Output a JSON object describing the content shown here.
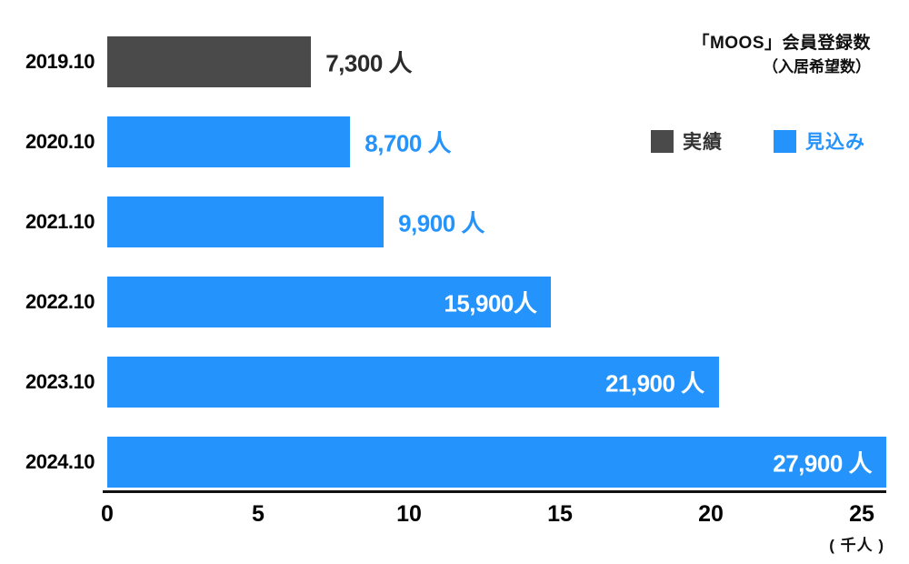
{
  "title": {
    "line1": "「MOOS」会員登録数",
    "line2": "（入居希望数）"
  },
  "legend": {
    "items": [
      {
        "label": "実績",
        "color": "#4a4a4a",
        "label_color": "#333333"
      },
      {
        "label": "見込み",
        "color": "#2493fb",
        "label_color": "#2493fb"
      }
    ]
  },
  "chart_data": {
    "type": "bar",
    "orientation": "horizontal",
    "title": "「MOOS」会員登録数（入居希望数）",
    "categories": [
      "2019.10",
      "2020.10",
      "2021.10",
      "2022.10",
      "2023.10",
      "2024.10"
    ],
    "values": [
      7300,
      8700,
      9900,
      15900,
      21900,
      27900
    ],
    "value_labels": [
      "7,300 人",
      "8,700 人",
      "9,900 人",
      "15,900人",
      "21,900 人",
      "27,900 人"
    ],
    "series_names": [
      "実績",
      "見込み",
      "見込み",
      "見込み",
      "見込み",
      "見込み"
    ],
    "series_colors": {
      "実績": "#4a4a4a",
      "見込み": "#2493fb"
    },
    "value_label_colors": {
      "実績": "#2b2b2b",
      "見込み": "#2493fb",
      "inside": "#ffffff"
    },
    "label_placement": [
      "outside",
      "outside",
      "outside",
      "inside",
      "inside",
      "inside"
    ],
    "x_ticks": [
      "0",
      "5",
      "10",
      "15",
      "20",
      "25"
    ],
    "x_tick_values": [
      0,
      5,
      10,
      15,
      20,
      25
    ],
    "x_unit_label": "( 千人 )",
    "xlim": [
      0,
      27900
    ],
    "axis_unit_scale": 1000,
    "grid": false,
    "legend_position": "top-right",
    "legend_entries": [
      "実績",
      "見込み"
    ]
  }
}
